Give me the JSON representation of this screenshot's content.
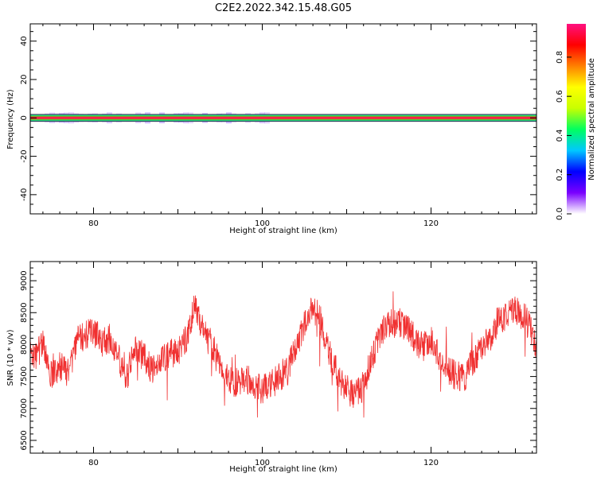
{
  "figure_title": "C2E2.2022.342.15.48.G05",
  "colorbar": {
    "label": "Normalized spectral amplitude",
    "ticks": [
      "0.0",
      "0.2",
      "0.4",
      "0.6",
      "0.8"
    ],
    "tick_values": [
      0.0,
      0.2,
      0.4,
      0.6,
      0.8
    ],
    "range": [
      0,
      0.97
    ],
    "colors": [
      "#ffffff",
      "#7a00ff",
      "#0000ff",
      "#00c8ff",
      "#00ff60",
      "#c8ff00",
      "#ffff00",
      "#ff8000",
      "#ff0000",
      "#ff1080"
    ]
  },
  "chart_data": [
    {
      "type": "heatmap",
      "xlabel": "Height of straight line (km)",
      "ylabel": "Frequency (Hz)",
      "xlim": [
        72.5,
        132.5
      ],
      "ylim": [
        -50,
        49
      ],
      "x_ticks": [
        80,
        100,
        120
      ],
      "y_ticks": [
        40,
        20,
        0,
        -20,
        -40
      ],
      "y_tick_labels": [
        "40",
        "20",
        "0",
        "-20",
        "-40"
      ],
      "grid": false,
      "band": {
        "frequency_center": 0,
        "core_halfwidth_hz": 0.8,
        "peak_amplitude": 0.97,
        "halo_halfwidth_hz": 2.5,
        "halo_extent_km": [
          72.5,
          101
        ],
        "halo_amplitude": 0.25
      }
    },
    {
      "type": "line",
      "xlabel": "Height of straight line (km)",
      "ylabel": "SNR (10 * v/v)",
      "xlim": [
        72.5,
        132.5
      ],
      "ylim": [
        6300,
        9300
      ],
      "x_ticks": [
        80,
        100,
        120
      ],
      "y_ticks": [
        9000,
        8500,
        8000,
        7500,
        7000,
        6500
      ],
      "grid": false,
      "series": [
        {
          "color": "#f03030",
          "x": [
            72.5,
            73,
            74,
            75,
            76,
            77,
            78,
            79,
            80,
            81,
            82,
            83,
            83.8,
            84.5,
            85,
            86,
            87,
            88,
            89,
            90,
            91,
            92,
            93,
            94,
            95,
            96,
            97,
            98,
            99,
            100,
            101,
            102,
            103,
            104,
            105,
            106,
            107,
            108,
            109,
            110,
            111,
            112,
            113,
            114,
            115,
            116,
            117,
            118,
            119,
            120,
            121,
            122,
            123,
            124,
            125,
            126,
            127,
            128,
            129,
            130,
            131,
            132,
            132.5
          ],
          "y": [
            7950,
            7800,
            8000,
            7500,
            7650,
            7550,
            8050,
            8150,
            8200,
            8050,
            8100,
            7800,
            7400,
            7800,
            7950,
            7800,
            7600,
            7700,
            7900,
            7850,
            8100,
            8600,
            8200,
            8000,
            7650,
            7450,
            7400,
            7500,
            7350,
            7300,
            7350,
            7500,
            7600,
            8000,
            8300,
            8600,
            8350,
            7850,
            7500,
            7300,
            7200,
            7350,
            7800,
            8200,
            8300,
            8350,
            8300,
            8100,
            7950,
            8050,
            7800,
            7600,
            7500,
            7500,
            7750,
            7900,
            8100,
            8400,
            8450,
            8550,
            8450,
            8200,
            7900
          ]
        }
      ]
    }
  ]
}
